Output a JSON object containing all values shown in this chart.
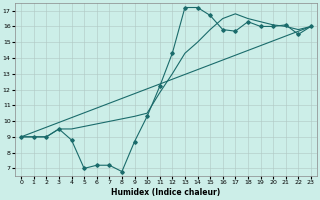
{
  "xlabel": "Humidex (Indice chaleur)",
  "bg_color": "#cceee8",
  "line_color": "#1a6b6b",
  "xlim": [
    -0.5,
    23.5
  ],
  "ylim": [
    6.5,
    17.5
  ],
  "xticks": [
    0,
    1,
    2,
    3,
    4,
    5,
    6,
    7,
    8,
    9,
    10,
    11,
    12,
    13,
    14,
    15,
    16,
    17,
    18,
    19,
    20,
    21,
    22,
    23
  ],
  "yticks": [
    7,
    8,
    9,
    10,
    11,
    12,
    13,
    14,
    15,
    16,
    17
  ],
  "line1_x": [
    0,
    1,
    2,
    3,
    4,
    5,
    6,
    7,
    8,
    9,
    10,
    11,
    12,
    13,
    14,
    15,
    16,
    17,
    18,
    19,
    20,
    21,
    22,
    23
  ],
  "line1_y": [
    9,
    9,
    9,
    9.5,
    8.8,
    7.0,
    7.2,
    7.2,
    6.8,
    8.7,
    10.3,
    12.2,
    14.3,
    17.2,
    17.2,
    16.7,
    15.8,
    15.7,
    16.3,
    16.0,
    16.0,
    16.1,
    15.5,
    16.0
  ],
  "line2_x": [
    0,
    1,
    2,
    3,
    4,
    9,
    10,
    11,
    12,
    13,
    14,
    15,
    16,
    17,
    18,
    19,
    20,
    21,
    22,
    23
  ],
  "line2_y": [
    9,
    9,
    9,
    9.5,
    9.5,
    10.3,
    10.5,
    11.8,
    13.0,
    14.3,
    15.0,
    15.8,
    16.5,
    16.8,
    16.5,
    16.3,
    16.1,
    16.0,
    15.8,
    16.0
  ],
  "line3_x": [
    0,
    23
  ],
  "line3_y": [
    9,
    16.0
  ]
}
